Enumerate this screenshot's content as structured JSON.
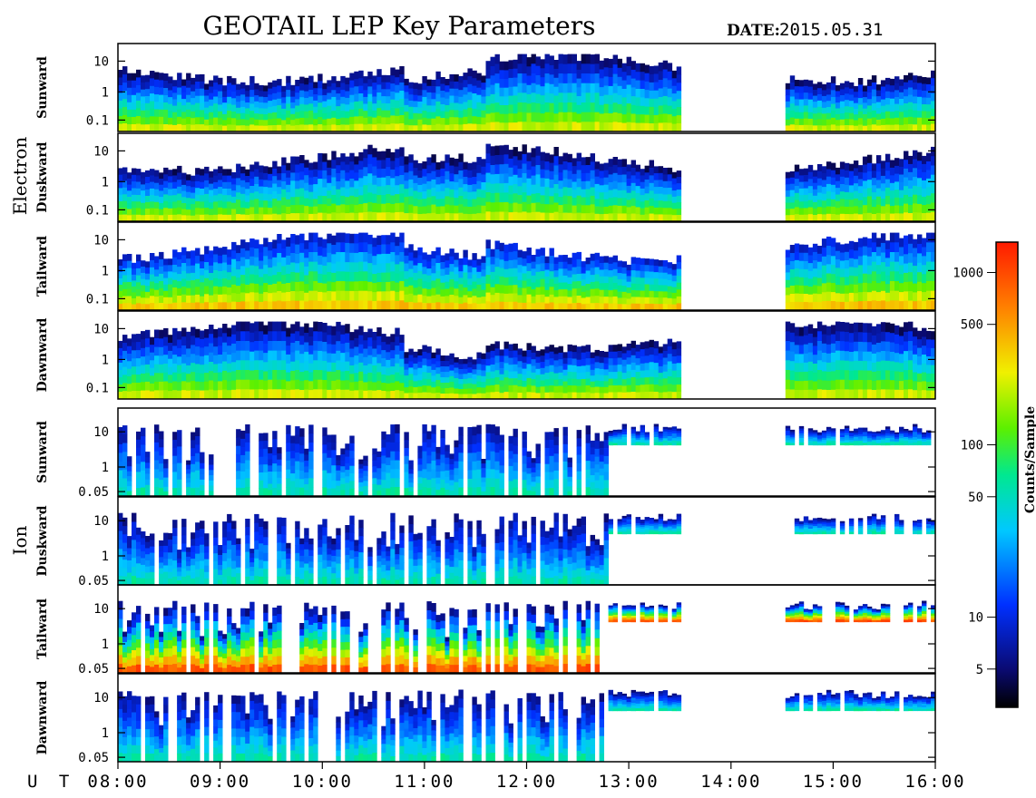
{
  "title": "GEOTAIL LEP Key Parameters",
  "date_label": "DATE:",
  "date_value": "2015.05.31",
  "ut_label": "U T",
  "colorbar": {
    "label": "Counts/Sample",
    "ticks": [
      "1000",
      "500",
      "100",
      "50",
      "10",
      "5"
    ],
    "tick_values": [
      1000,
      500,
      100,
      50,
      10,
      5
    ],
    "scale": "log",
    "range": [
      3,
      1500
    ]
  },
  "time_axis": {
    "labels": [
      "08:00",
      "09:00",
      "10:00",
      "11:00",
      "12:00",
      "13:00",
      "14:00",
      "15:00",
      "16:00"
    ]
  },
  "groups": [
    {
      "name": "Electron",
      "panels": [
        {
          "label": "Sunward",
          "ticks": [
            "10",
            "1",
            "0.1"
          ]
        },
        {
          "label": "Duskward",
          "ticks": [
            "10",
            "1",
            "0.1"
          ]
        },
        {
          "label": "Tailward",
          "ticks": [
            "10",
            "1",
            "0.1"
          ]
        },
        {
          "label": "Dawnward",
          "ticks": [
            "10",
            "1",
            "0.1"
          ]
        }
      ]
    },
    {
      "name": "Ion",
      "panels": [
        {
          "label": "Sunward",
          "ticks": [
            "10",
            "1",
            "0.05"
          ]
        },
        {
          "label": "Duskward",
          "ticks": [
            "10",
            "1",
            "0.05"
          ]
        },
        {
          "label": "Tailward",
          "ticks": [
            "10",
            "1",
            "0.05"
          ]
        },
        {
          "label": "Dawnward",
          "ticks": [
            "10",
            "1",
            "0.05"
          ]
        }
      ]
    }
  ],
  "chart_data": {
    "type": "heatmap",
    "title": "GEOTAIL LEP Key Parameters",
    "date": "2015.05.31",
    "x_range": [
      "08:00",
      "16:00"
    ],
    "colorbar_label": "Counts/Sample",
    "data_gap": [
      "13:30",
      "14:35"
    ],
    "panels": [
      {
        "group": "Electron",
        "direction": "Sunward",
        "y_ticks": [
          10,
          1,
          0.1
        ]
      },
      {
        "group": "Electron",
        "direction": "Duskward",
        "y_ticks": [
          10,
          1,
          0.1
        ]
      },
      {
        "group": "Electron",
        "direction": "Tailward",
        "y_ticks": [
          10,
          1,
          0.1
        ]
      },
      {
        "group": "Electron",
        "direction": "Dawnward",
        "y_ticks": [
          10,
          1,
          0.1
        ]
      },
      {
        "group": "Ion",
        "direction": "Sunward",
        "y_ticks": [
          10,
          1,
          0.05
        ]
      },
      {
        "group": "Ion",
        "direction": "Duskward",
        "y_ticks": [
          10,
          1,
          0.05
        ]
      },
      {
        "group": "Ion",
        "direction": "Tailward",
        "y_ticks": [
          10,
          1,
          0.05
        ]
      },
      {
        "group": "Ion",
        "direction": "Dawnward",
        "y_ticks": [
          10,
          1,
          0.05
        ]
      }
    ]
  }
}
